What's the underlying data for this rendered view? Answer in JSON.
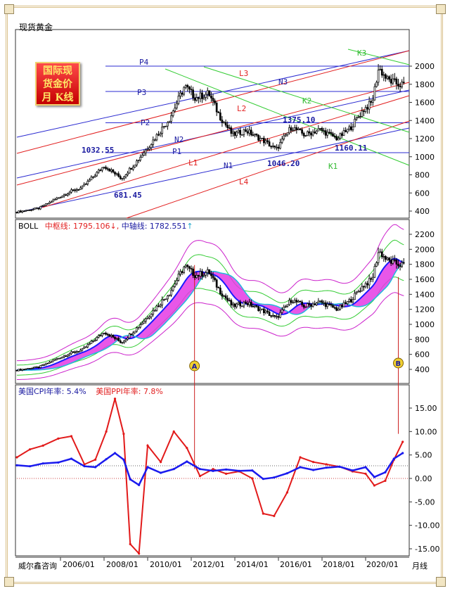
{
  "header": {
    "title": "现货黄金"
  },
  "badge": {
    "lines": [
      "国际现",
      "货金价",
      "月 K线"
    ]
  },
  "footer": {
    "brand": "威尔鑫咨询",
    "x_labels": [
      "2006/01",
      "2008/01",
      "2010/01",
      "2012/01",
      "2014/01",
      "2016/01",
      "2018/01",
      "2020/01"
    ],
    "period": "月线"
  },
  "colors": {
    "frame": "#d9c08a",
    "grid": "#8a8a8a",
    "line_blue": "#2b2bd1",
    "line_red": "#e22020",
    "line_green": "#33cc33",
    "magenta": "#cc22cc",
    "text_blue": "#1a1aa0"
  },
  "chart_data": [
    {
      "type": "line",
      "panel": "price",
      "title": "国际现货金价 月K线",
      "y_ticks": [
        400,
        600,
        800,
        1000,
        1200,
        1400,
        1600,
        1800,
        2000
      ],
      "ylim": [
        300,
        2150
      ],
      "annotations": {
        "channel_labels": [
          "P4",
          "P3",
          "P2",
          "P1",
          "N3",
          "N2",
          "N1",
          "L3",
          "L2",
          "L1",
          "L4",
          "K3",
          "K2",
          "K1"
        ],
        "price_labels": [
          "1032.55",
          "681.45",
          "1375.10",
          "1046.20",
          "1160.11"
        ]
      },
      "x": [
        2004.0,
        2005.0,
        2006.0,
        2006.5,
        2007.0,
        2008.0,
        2008.8,
        2009.5,
        2010.0,
        2011.0,
        2011.7,
        2012.2,
        2012.8,
        2013.3,
        2013.9,
        2014.5,
        2015.3,
        2015.9,
        2016.6,
        2017.2,
        2017.9,
        2018.7,
        2019.3,
        2019.9,
        2020.3,
        2020.6,
        2021.0,
        2021.5,
        2021.9
      ],
      "close": [
        390,
        430,
        560,
        620,
        660,
        900,
        760,
        950,
        1100,
        1420,
        1780,
        1650,
        1700,
        1450,
        1240,
        1290,
        1180,
        1080,
        1330,
        1240,
        1300,
        1200,
        1320,
        1520,
        1600,
        1980,
        1850,
        1800,
        1790
      ]
    },
    {
      "type": "line",
      "panel": "boll",
      "title": "BOLL",
      "legend": [
        {
          "name": "中枢线",
          "value": "1795.106",
          "arrow": "↓"
        },
        {
          "name": "中轴线",
          "value": "1782.551",
          "arrow": "↑"
        }
      ],
      "y_ticks": [
        400,
        600,
        800,
        1000,
        1200,
        1400,
        1600,
        1800,
        2000,
        2200
      ],
      "ylim": [
        300,
        2300
      ],
      "markers": [
        "A",
        "B"
      ]
    },
    {
      "type": "line",
      "panel": "macro",
      "legend": [
        {
          "name": "美国CPI年率",
          "value": "5.4%"
        },
        {
          "name": "美国PPI年率",
          "value": "7.8%"
        }
      ],
      "y_ticks": [
        15.0,
        10.0,
        5.0,
        0.0,
        -5.0,
        -10.0,
        -15.0
      ],
      "ylim": [
        -16.5,
        18.5
      ],
      "x": [
        2004.0,
        2004.6,
        2005.2,
        2005.9,
        2006.5,
        2007.1,
        2007.6,
        2008.1,
        2008.5,
        2008.9,
        2009.2,
        2009.6,
        2010.0,
        2010.6,
        2011.2,
        2011.8,
        2012.4,
        2013.0,
        2013.6,
        2014.2,
        2014.8,
        2015.3,
        2015.8,
        2016.4,
        2017.0,
        2017.6,
        2018.2,
        2018.8,
        2019.4,
        2020.0,
        2020.4,
        2020.9,
        2021.3,
        2021.7
      ],
      "series": [
        {
          "name": "美国CPI年率",
          "values": [
            2.8,
            2.6,
            3.2,
            3.4,
            4.2,
            2.6,
            2.4,
            4.1,
            5.4,
            4.0,
            -0.2,
            -1.4,
            2.4,
            1.2,
            2.0,
            3.6,
            2.0,
            1.6,
            1.9,
            1.6,
            1.7,
            -0.1,
            0.2,
            1.1,
            2.4,
            1.8,
            2.3,
            2.5,
            1.7,
            2.4,
            0.3,
            1.3,
            4.2,
            5.4
          ]
        },
        {
          "name": "美国PPI年率",
          "values": [
            4.5,
            6.2,
            7.0,
            8.5,
            9.0,
            3.0,
            4.0,
            10.0,
            17.0,
            9.5,
            -14.0,
            -16.0,
            7.0,
            3.5,
            10.0,
            6.5,
            0.5,
            2.0,
            1.0,
            1.5,
            0.0,
            -7.5,
            -8.0,
            -3.0,
            4.5,
            3.5,
            3.0,
            2.5,
            1.5,
            1.0,
            -1.5,
            -0.5,
            4.0,
            7.8
          ]
        }
      ]
    }
  ]
}
